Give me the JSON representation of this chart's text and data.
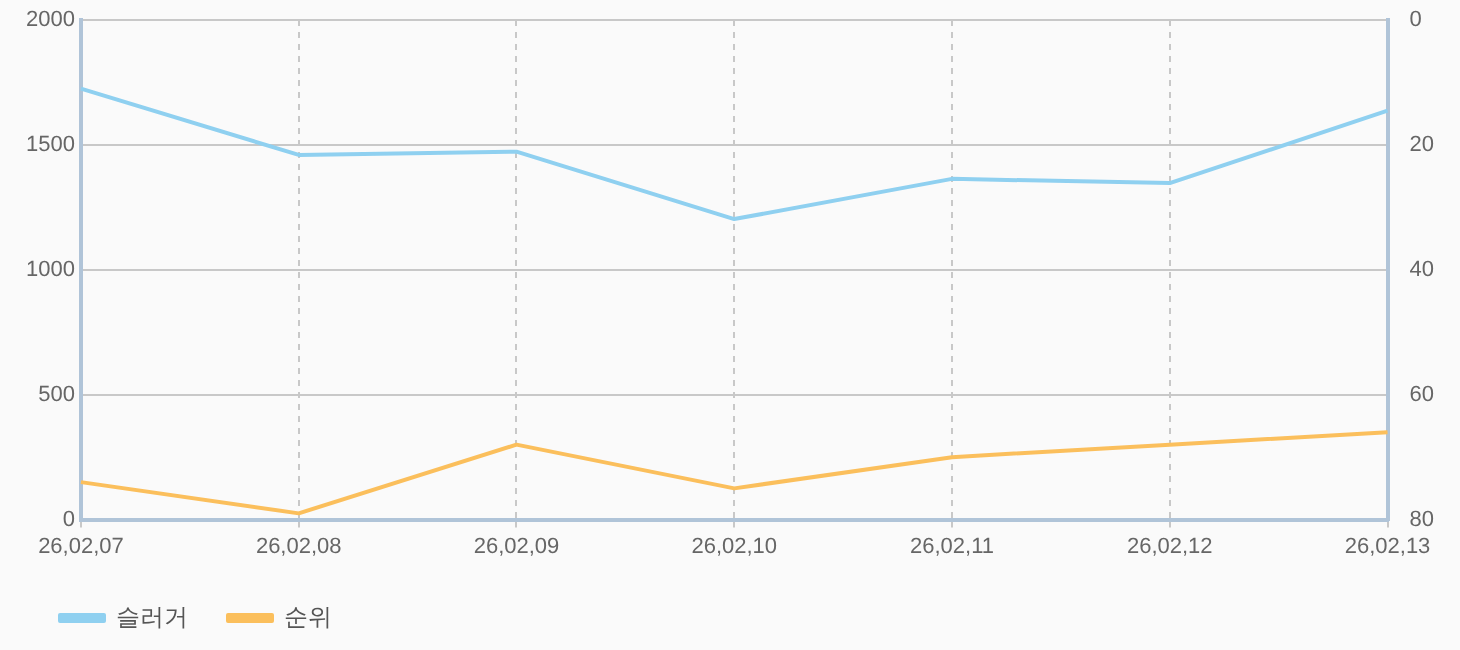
{
  "chart_data": {
    "type": "line",
    "categories": [
      "26,02,07",
      "26,02,08",
      "26,02,09",
      "26,02,10",
      "26,02,11",
      "26,02,12",
      "26,02,13"
    ],
    "series": [
      {
        "name": "슬러거",
        "color": "#8fd0f0",
        "values": [
          1725,
          1460,
          1473,
          1203,
          1364,
          1347,
          1637
        ]
      },
      {
        "name": "순위",
        "color": "#fbbf5c",
        "axis": "y2",
        "values": [
          74,
          79,
          68,
          75,
          70,
          68,
          66
        ]
      }
    ],
    "ylim": [
      0,
      2000
    ],
    "yticks": [
      0,
      500,
      1000,
      1500,
      2000
    ],
    "y2lim": [
      80,
      0
    ],
    "y2ticks": [
      80,
      60,
      40,
      20,
      0
    ],
    "grid": true,
    "legend": "bottom left",
    "marker": "none",
    "line_style": "solid"
  }
}
